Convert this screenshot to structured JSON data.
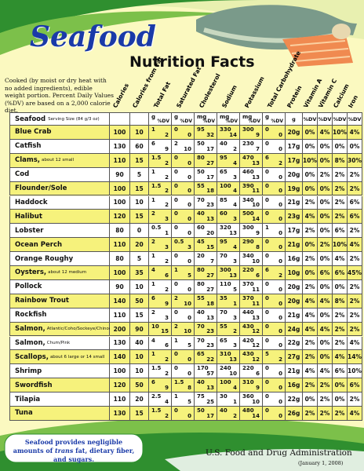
{
  "header": {
    "title": "Seafood",
    "subtitle": "Nutrition Facts",
    "intro": "Cooked (by moist or dry heat with no added ingredients), edible weight portion. Percent Daily Values (%DV) are based on a 2,000 calorie diet."
  },
  "table": {
    "columns": [
      "Calories",
      "Calories from Fat",
      "Total Fat",
      "Saturated Fat",
      "Cholesterol",
      "Sodium",
      "Potassium",
      "Total Carbohydrate",
      "Protein",
      "Vitamin A",
      "Vitamin C",
      "Calcium",
      "Iron"
    ],
    "serving_label": "Seafood",
    "serving_size": "Serving Size (84 g/3 oz)",
    "units": [
      [
        "g",
        "%DV"
      ],
      [
        "g",
        "%DV"
      ],
      [
        "mg",
        "%DV"
      ],
      [
        "mg",
        "%DV"
      ],
      [
        "mg",
        "%DV"
      ],
      [
        "g",
        "%DV"
      ],
      "g",
      "%DV",
      "%DV",
      "%DV",
      "%DV"
    ],
    "rows": [
      {
        "name": "Blue Crab",
        "values": [
          "100",
          "10",
          [
            "1",
            "2"
          ],
          [
            "0",
            "0"
          ],
          [
            "95",
            "32"
          ],
          [
            "330",
            "14"
          ],
          [
            "300",
            "9"
          ],
          [
            "0",
            "0"
          ],
          "20g",
          "0%",
          "4%",
          "10%",
          "4%"
        ]
      },
      {
        "name": "Catfish",
        "values": [
          "130",
          "60",
          [
            "6",
            "9"
          ],
          [
            "2",
            "10"
          ],
          [
            "50",
            "17"
          ],
          [
            "40",
            "2"
          ],
          [
            "230",
            "7"
          ],
          [
            "0",
            "0"
          ],
          "17g",
          "0%",
          "0%",
          "0%",
          "0%"
        ]
      },
      {
        "name": "Clams,",
        "note": "about 12 small",
        "values": [
          "110",
          "15",
          [
            "1.5",
            "2"
          ],
          [
            "0",
            "0"
          ],
          [
            "80",
            "27"
          ],
          [
            "95",
            "4"
          ],
          [
            "470",
            "13"
          ],
          [
            "6",
            "2"
          ],
          "17g",
          "10%",
          "0%",
          "8%",
          "30%"
        ]
      },
      {
        "name": "Cod",
        "values": [
          "90",
          "5",
          [
            "1",
            "2"
          ],
          [
            "0",
            "0"
          ],
          [
            "50",
            "17"
          ],
          [
            "65",
            "3"
          ],
          [
            "460",
            "13"
          ],
          [
            "0",
            "0"
          ],
          "20g",
          "0%",
          "2%",
          "2%",
          "2%"
        ]
      },
      {
        "name": "Flounder/Sole",
        "values": [
          "100",
          "15",
          [
            "1.5",
            "2"
          ],
          [
            "0",
            "0"
          ],
          [
            "55",
            "18"
          ],
          [
            "100",
            "4"
          ],
          [
            "390",
            "11"
          ],
          [
            "0",
            "0"
          ],
          "19g",
          "0%",
          "0%",
          "2%",
          "2%"
        ]
      },
      {
        "name": "Haddock",
        "values": [
          "100",
          "10",
          [
            "1",
            "2"
          ],
          [
            "0",
            "0"
          ],
          [
            "70",
            "23"
          ],
          [
            "85",
            "4"
          ],
          [
            "340",
            "10"
          ],
          [
            "0",
            "0"
          ],
          "21g",
          "2%",
          "0%",
          "2%",
          "6%"
        ]
      },
      {
        "name": "Halibut",
        "values": [
          "120",
          "15",
          [
            "2",
            "3"
          ],
          [
            "0",
            "0"
          ],
          [
            "40",
            "13"
          ],
          [
            "60",
            "3"
          ],
          [
            "500",
            "14"
          ],
          [
            "0",
            "0"
          ],
          "23g",
          "4%",
          "0%",
          "2%",
          "6%"
        ]
      },
      {
        "name": "Lobster",
        "values": [
          "80",
          "0",
          [
            "0.5",
            "1"
          ],
          [
            "0",
            "0"
          ],
          [
            "60",
            "20"
          ],
          [
            "320",
            "13"
          ],
          [
            "300",
            "9"
          ],
          [
            "1",
            "0"
          ],
          "17g",
          "2%",
          "0%",
          "6%",
          "2%"
        ]
      },
      {
        "name": "Ocean Perch",
        "values": [
          "110",
          "20",
          [
            "2",
            "3"
          ],
          [
            "0.5",
            "3"
          ],
          [
            "45",
            "15"
          ],
          [
            "95",
            "4"
          ],
          [
            "290",
            "8"
          ],
          [
            "0",
            "0"
          ],
          "21g",
          "0%",
          "2%",
          "10%",
          "4%"
        ]
      },
      {
        "name": "Orange Roughy",
        "values": [
          "80",
          "5",
          [
            "1",
            "2"
          ],
          [
            "0",
            "0"
          ],
          [
            "20",
            "7"
          ],
          [
            "70",
            "3"
          ],
          [
            "340",
            "10"
          ],
          [
            "0",
            "0"
          ],
          "16g",
          "2%",
          "0%",
          "4%",
          "2%"
        ]
      },
      {
        "name": "Oysters,",
        "note": "about 12 medium",
        "values": [
          "100",
          "35",
          [
            "4",
            "6"
          ],
          [
            "1",
            "5"
          ],
          [
            "80",
            "27"
          ],
          [
            "300",
            "13"
          ],
          [
            "220",
            "6"
          ],
          [
            "6",
            "2"
          ],
          "10g",
          "0%",
          "6%",
          "6%",
          "45%"
        ]
      },
      {
        "name": "Pollock",
        "values": [
          "90",
          "10",
          [
            "1",
            "2"
          ],
          [
            "0",
            "0"
          ],
          [
            "80",
            "27"
          ],
          [
            "110",
            "5"
          ],
          [
            "370",
            "11"
          ],
          [
            "0",
            "0"
          ],
          "20g",
          "2%",
          "0%",
          "0%",
          "2%"
        ]
      },
      {
        "name": "Rainbow Trout",
        "values": [
          "140",
          "50",
          [
            "6",
            "9"
          ],
          [
            "2",
            "10"
          ],
          [
            "55",
            "18"
          ],
          [
            "35",
            "1"
          ],
          [
            "370",
            "11"
          ],
          [
            "0",
            "0"
          ],
          "20g",
          "4%",
          "4%",
          "8%",
          "2%"
        ]
      },
      {
        "name": "Rockfish",
        "values": [
          "110",
          "15",
          [
            "2",
            "3"
          ],
          [
            "0",
            "0"
          ],
          [
            "40",
            "13"
          ],
          [
            "70",
            "3"
          ],
          [
            "440",
            "13"
          ],
          [
            "0",
            "0"
          ],
          "21g",
          "4%",
          "0%",
          "2%",
          "2%"
        ]
      },
      {
        "name": "Salmon,",
        "note": "Atlantic/Coho/Sockeye/Chinook",
        "values": [
          "200",
          "90",
          [
            "10",
            "15"
          ],
          [
            "2",
            "10"
          ],
          [
            "70",
            "23"
          ],
          [
            "55",
            "2"
          ],
          [
            "430",
            "12"
          ],
          [
            "0",
            "0"
          ],
          "24g",
          "4%",
          "4%",
          "2%",
          "2%"
        ]
      },
      {
        "name": "Salmon,",
        "note": "Chum/Pink",
        "values": [
          "130",
          "40",
          [
            "4",
            "6"
          ],
          [
            "1",
            "5"
          ],
          [
            "70",
            "23"
          ],
          [
            "65",
            "3"
          ],
          [
            "420",
            "12"
          ],
          [
            "0",
            "0"
          ],
          "22g",
          "2%",
          "0%",
          "2%",
          "4%"
        ]
      },
      {
        "name": "Scallops,",
        "note": "about 6 large or 14 small",
        "values": [
          "140",
          "10",
          [
            "1",
            "2"
          ],
          [
            "0",
            "0"
          ],
          [
            "65",
            "22"
          ],
          [
            "310",
            "13"
          ],
          [
            "430",
            "12"
          ],
          [
            "5",
            "2"
          ],
          "27g",
          "2%",
          "0%",
          "4%",
          "14%"
        ]
      },
      {
        "name": "Shrimp",
        "values": [
          "100",
          "10",
          [
            "1.5",
            "2"
          ],
          [
            "0",
            "0"
          ],
          [
            "170",
            "57"
          ],
          [
            "240",
            "10"
          ],
          [
            "220",
            "6"
          ],
          [
            "0",
            "0"
          ],
          "21g",
          "4%",
          "4%",
          "6%",
          "10%"
        ]
      },
      {
        "name": "Swordfish",
        "values": [
          "120",
          "50",
          [
            "6",
            "9"
          ],
          [
            "1.5",
            "8"
          ],
          [
            "40",
            "13"
          ],
          [
            "100",
            "4"
          ],
          [
            "310",
            "9"
          ],
          [
            "0",
            "0"
          ],
          "16g",
          "2%",
          "2%",
          "0%",
          "6%"
        ]
      },
      {
        "name": "Tilapia",
        "values": [
          "110",
          "20",
          [
            "2.5",
            "4"
          ],
          [
            "1",
            "5"
          ],
          [
            "75",
            "25"
          ],
          [
            "30",
            "1"
          ],
          [
            "360",
            "10"
          ],
          [
            "0",
            "0"
          ],
          "22g",
          "0%",
          "2%",
          "0%",
          "2%"
        ]
      },
      {
        "name": "Tuna",
        "values": [
          "130",
          "15",
          [
            "1.5",
            "2"
          ],
          [
            "0",
            "0"
          ],
          [
            "50",
            "17"
          ],
          [
            "40",
            "2"
          ],
          [
            "480",
            "14"
          ],
          [
            "0",
            "0"
          ],
          "26g",
          "2%",
          "2%",
          "2%",
          "4%"
        ]
      }
    ]
  },
  "footer": {
    "note_before": "Seafood provides negligible amounts of",
    "note_em": "trans",
    "note_after": "fat, dietary fiber, and sugars.",
    "agency": "U.S. Food and Drug Administration",
    "date": "(January 1, 2008)"
  }
}
